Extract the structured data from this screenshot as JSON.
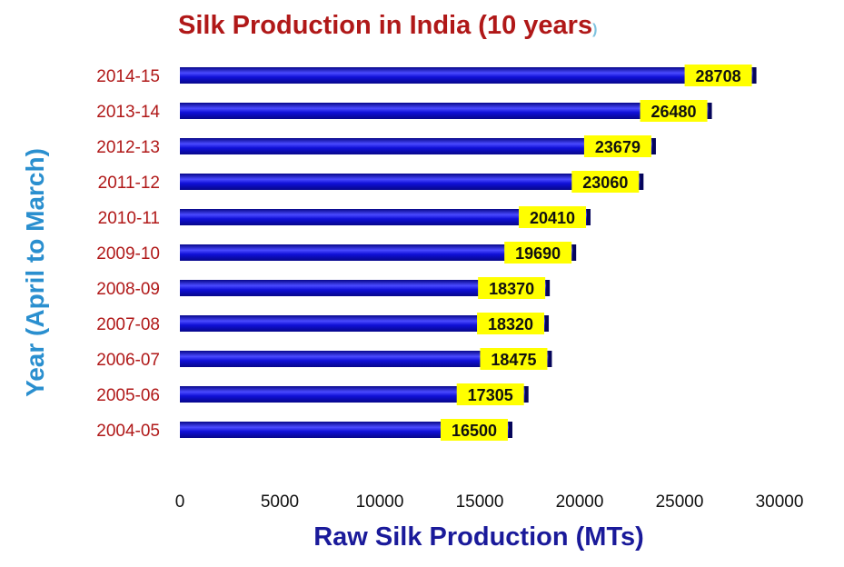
{
  "chart_data": {
    "type": "bar",
    "orientation": "horizontal",
    "title": "Silk Production  in India (10 years",
    "title_paren": ")",
    "xlabel": "Raw Silk Production (MTs)",
    "ylabel": "Year (April to March)",
    "categories": [
      "2014-15",
      "2013-14",
      "2012-13",
      "2011-12",
      "2010-11",
      "2009-10",
      "2008-09",
      "2007-08",
      "2006-07",
      "2005-06",
      "2004-05"
    ],
    "values": [
      28708,
      26480,
      23679,
      23060,
      20410,
      19690,
      18370,
      18320,
      18475,
      17305,
      16500
    ],
    "data_labels": [
      "28708",
      "26480",
      "23679",
      "23060",
      "20410",
      "19690",
      "18370",
      "18320",
      "18475",
      "17305",
      "16500"
    ],
    "xlim": [
      0,
      30000
    ],
    "xticks": [
      "0",
      "5000",
      "10000",
      "15000",
      "20000",
      "25000",
      "30000"
    ],
    "grid": false,
    "legend": "none",
    "colors": {
      "bar": "#1010d8",
      "bar_light": "#4a4aff",
      "bar_dark": "#07078a",
      "bar_cap": "#05055a",
      "label_bg": "#ffff00",
      "title": "#b01818",
      "category_text": "#b01818",
      "ylabel": "#2a8fcf",
      "xlabel": "#1a1a9a"
    }
  }
}
